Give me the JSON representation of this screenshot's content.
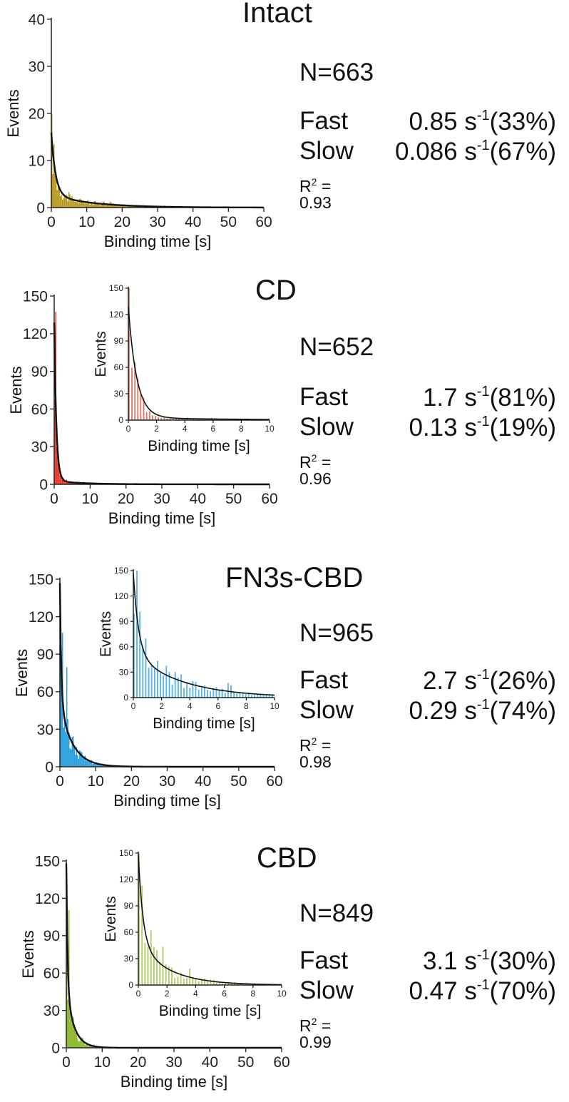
{
  "chart_data": [
    {
      "type": "bar",
      "title": "Intact",
      "color": "#b89818",
      "xlabel": "Binding time [s]",
      "ylabel": "Events",
      "xlim": [
        0,
        60
      ],
      "ylim": [
        0,
        40
      ],
      "xticks": [
        0,
        10,
        20,
        30,
        40,
        50,
        60
      ],
      "yticks": [
        0,
        10,
        20,
        30,
        40
      ],
      "fit": {
        "A": 13.2,
        "k1": 0.85,
        "B": 2.7,
        "k2": 0.086
      },
      "stats": {
        "n": "N=663",
        "fast_label": "Fast",
        "fast_value": "0.85 s",
        "fast_exp": "-1",
        "fast_pct": "(33%)",
        "slow_label": "Slow",
        "slow_value": "0.086 s",
        "slow_exp": "-1",
        "slow_pct": "(67%)",
        "r2_prefix": "R",
        "r2_exp": "2",
        "r2_value": " = 0.93"
      },
      "inset": null
    },
    {
      "type": "bar",
      "title": "CD",
      "color": "#e83a2a",
      "xlabel": "Binding time [s]",
      "ylabel": "Events",
      "xlim": [
        0,
        60
      ],
      "ylim": [
        0,
        150
      ],
      "xticks": [
        0,
        10,
        20,
        30,
        40,
        50,
        60
      ],
      "yticks": [
        0,
        30,
        60,
        90,
        120,
        150
      ],
      "fit": {
        "A": 126,
        "k1": 1.7,
        "B": 2.8,
        "k2": 0.13
      },
      "stats": {
        "n": "N=652",
        "fast_label": "Fast",
        "fast_value": "1.7 s",
        "fast_exp": "-1",
        "fast_pct": "(81%)",
        "slow_label": "Slow",
        "slow_value": "0.13 s",
        "slow_exp": "-1",
        "slow_pct": "(19%)",
        "r2_prefix": "R",
        "r2_exp": "2",
        "r2_value": " = 0.96"
      },
      "inset": {
        "color": "#d87a6a",
        "xlabel": "Binding time [s]",
        "ylabel": "Events",
        "xlim": [
          0,
          10
        ],
        "ylim": [
          0,
          150
        ],
        "xticks": [
          0,
          2,
          4,
          6,
          8,
          10
        ],
        "yticks": [
          0,
          30,
          60,
          90,
          120,
          150
        ]
      }
    },
    {
      "type": "bar",
      "title": "FN3s-CBD",
      "color": "#2aa0dc",
      "xlabel": "Binding time [s]",
      "ylabel": "Events",
      "xlim": [
        0,
        60
      ],
      "ylim": [
        0,
        150
      ],
      "xticks": [
        0,
        10,
        20,
        30,
        40,
        50,
        60
      ],
      "yticks": [
        0,
        30,
        60,
        90,
        120,
        150
      ],
      "fit": {
        "A": 95,
        "k1": 2.7,
        "B": 52,
        "k2": 0.29
      },
      "stats": {
        "n": "N=965",
        "fast_label": "Fast",
        "fast_value": "2.7 s",
        "fast_exp": "-1",
        "fast_pct": "(26%)",
        "slow_label": "Slow",
        "slow_value": "0.29 s",
        "slow_exp": "-1",
        "slow_pct": "(74%)",
        "r2_prefix": "R",
        "r2_exp": "2",
        "r2_value": " = 0.98"
      },
      "inset": {
        "color": "#5ab4e6",
        "xlabel": "Binding time [s]",
        "ylabel": "Events",
        "xlim": [
          0,
          10
        ],
        "ylim": [
          0,
          150
        ],
        "xticks": [
          0,
          2,
          4,
          6,
          8,
          10
        ],
        "yticks": [
          0,
          30,
          60,
          90,
          120,
          150
        ]
      }
    },
    {
      "type": "bar",
      "title": "CBD",
      "color": "#8cb82a",
      "xlabel": "Binding time [s]",
      "ylabel": "Events",
      "xlim": [
        0,
        60
      ],
      "ylim": [
        0,
        150
      ],
      "xticks": [
        0,
        10,
        20,
        30,
        40,
        50,
        60
      ],
      "yticks": [
        0,
        30,
        60,
        90,
        120,
        150
      ],
      "fit": {
        "A": 100,
        "k1": 3.1,
        "B": 48,
        "k2": 0.47
      },
      "stats": {
        "n": "N=849",
        "fast_label": "Fast",
        "fast_value": "3.1 s",
        "fast_exp": "-1",
        "fast_pct": "(30%)",
        "slow_label": "Slow",
        "slow_value": "0.47 s",
        "slow_exp": "-1",
        "slow_pct": "(70%)",
        "r2_prefix": "R",
        "r2_exp": "2",
        "r2_value": " = 0.99"
      },
      "inset": {
        "color": "#b4cc6a",
        "xlabel": "Binding time [s]",
        "ylabel": "Events",
        "xlim": [
          0,
          10
        ],
        "ylim": [
          0,
          150
        ],
        "xticks": [
          0,
          2,
          4,
          6,
          8,
          10
        ],
        "yticks": [
          0,
          30,
          60,
          90,
          120,
          150
        ]
      }
    }
  ]
}
